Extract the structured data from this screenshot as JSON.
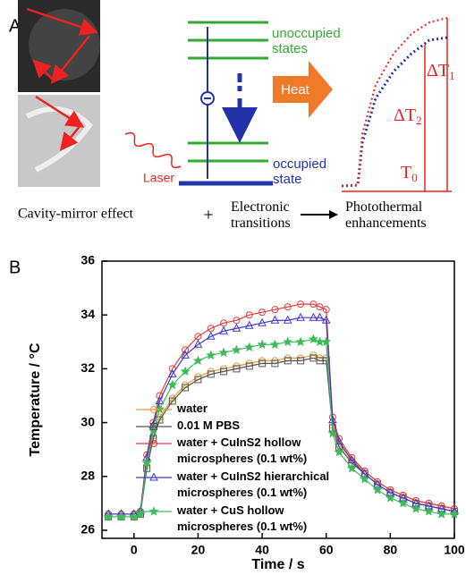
{
  "panel_a": {
    "label": "A",
    "unoccupied": [
      "unoccupied",
      "states"
    ],
    "occupied": [
      "occupied",
      "state"
    ],
    "heat": "Heat",
    "laser": "Laser",
    "delta_t2": {
      "text": "ΔT",
      "sub": "2"
    },
    "delta_t1": {
      "text": "ΔT",
      "sub": "1"
    },
    "t0": {
      "text": "T",
      "sub": "0"
    },
    "caption_cavity": "Cavity-mirror effect",
    "plus": "+",
    "caption_electronic": [
      "Electronic",
      "transitions"
    ],
    "caption_photothermal": [
      "Photothermal",
      "enhancements"
    ]
  },
  "chart_data": {
    "type": "line",
    "panel_label": "B",
    "x_label": "Time / s",
    "y_label": "Temperature / °C",
    "x": [
      -8,
      -4,
      0,
      2,
      4,
      6,
      8,
      12,
      16,
      20,
      24,
      28,
      32,
      36,
      40,
      44,
      48,
      52,
      56,
      58,
      60,
      62,
      64,
      68,
      72,
      76,
      80,
      84,
      88,
      92,
      96,
      100
    ],
    "series": [
      {
        "name": "water",
        "color": "#e39a3b",
        "marker": "circle",
        "values": [
          26.6,
          26.6,
          26.6,
          26.7,
          28.4,
          29.5,
          30.2,
          30.9,
          31.4,
          31.7,
          31.9,
          32.0,
          32.1,
          32.2,
          32.3,
          32.3,
          32.4,
          32.4,
          32.5,
          32.4,
          32.4,
          29.9,
          29.2,
          28.6,
          28.2,
          27.8,
          27.5,
          27.3,
          27.1,
          27.0,
          26.9,
          26.8
        ]
      },
      {
        "name": "0.01 M PBS",
        "color": "#555555",
        "marker": "square",
        "values": [
          26.5,
          26.5,
          26.5,
          26.6,
          28.3,
          29.4,
          30.1,
          30.8,
          31.3,
          31.6,
          31.8,
          31.9,
          32.0,
          32.1,
          32.2,
          32.2,
          32.3,
          32.3,
          32.4,
          32.3,
          32.3,
          29.8,
          29.1,
          28.5,
          28.1,
          27.7,
          27.4,
          27.2,
          27.0,
          26.9,
          26.8,
          26.7
        ]
      },
      {
        "name": "water + CuInS2 hollow microspheres (0.1 wt%)",
        "color": "#e23b3b",
        "marker": "circle",
        "values": [
          26.6,
          26.6,
          26.6,
          26.7,
          28.8,
          30.0,
          31.0,
          32.0,
          32.7,
          33.2,
          33.5,
          33.7,
          33.8,
          34.0,
          34.1,
          34.2,
          34.3,
          34.4,
          34.4,
          34.3,
          34.2,
          30.2,
          29.4,
          28.7,
          28.2,
          27.8,
          27.5,
          27.3,
          27.1,
          27.0,
          26.9,
          26.8
        ]
      },
      {
        "name": "water + CuInS2 hierarchical microspheres (0.1 wt%)",
        "color": "#3b3bcc",
        "marker": "triangle",
        "values": [
          26.6,
          26.6,
          26.6,
          26.7,
          28.7,
          29.9,
          30.8,
          31.8,
          32.5,
          32.9,
          33.2,
          33.4,
          33.5,
          33.6,
          33.7,
          33.8,
          33.8,
          33.9,
          33.9,
          33.9,
          33.8,
          30.1,
          29.3,
          28.6,
          28.1,
          27.7,
          27.4,
          27.2,
          27.0,
          26.9,
          26.8,
          26.7
        ]
      },
      {
        "name": "water + CuS hollow microspheres (0.1 wt%)",
        "color": "#3dbb5a",
        "marker": "star",
        "values": [
          26.5,
          26.5,
          26.5,
          26.6,
          28.5,
          29.7,
          30.5,
          31.4,
          31.9,
          32.3,
          32.5,
          32.6,
          32.7,
          32.8,
          32.9,
          32.9,
          33.0,
          33.0,
          33.1,
          33.0,
          33.0,
          29.6,
          28.9,
          28.3,
          27.9,
          27.5,
          27.2,
          27.0,
          26.8,
          26.7,
          26.6,
          26.6
        ]
      }
    ],
    "xlim": [
      -10,
      100
    ],
    "xticks": [
      0,
      20,
      40,
      60,
      80,
      100
    ],
    "ylim": [
      25.7,
      36
    ],
    "yticks": [
      26,
      28,
      30,
      32,
      34,
      36
    ]
  }
}
